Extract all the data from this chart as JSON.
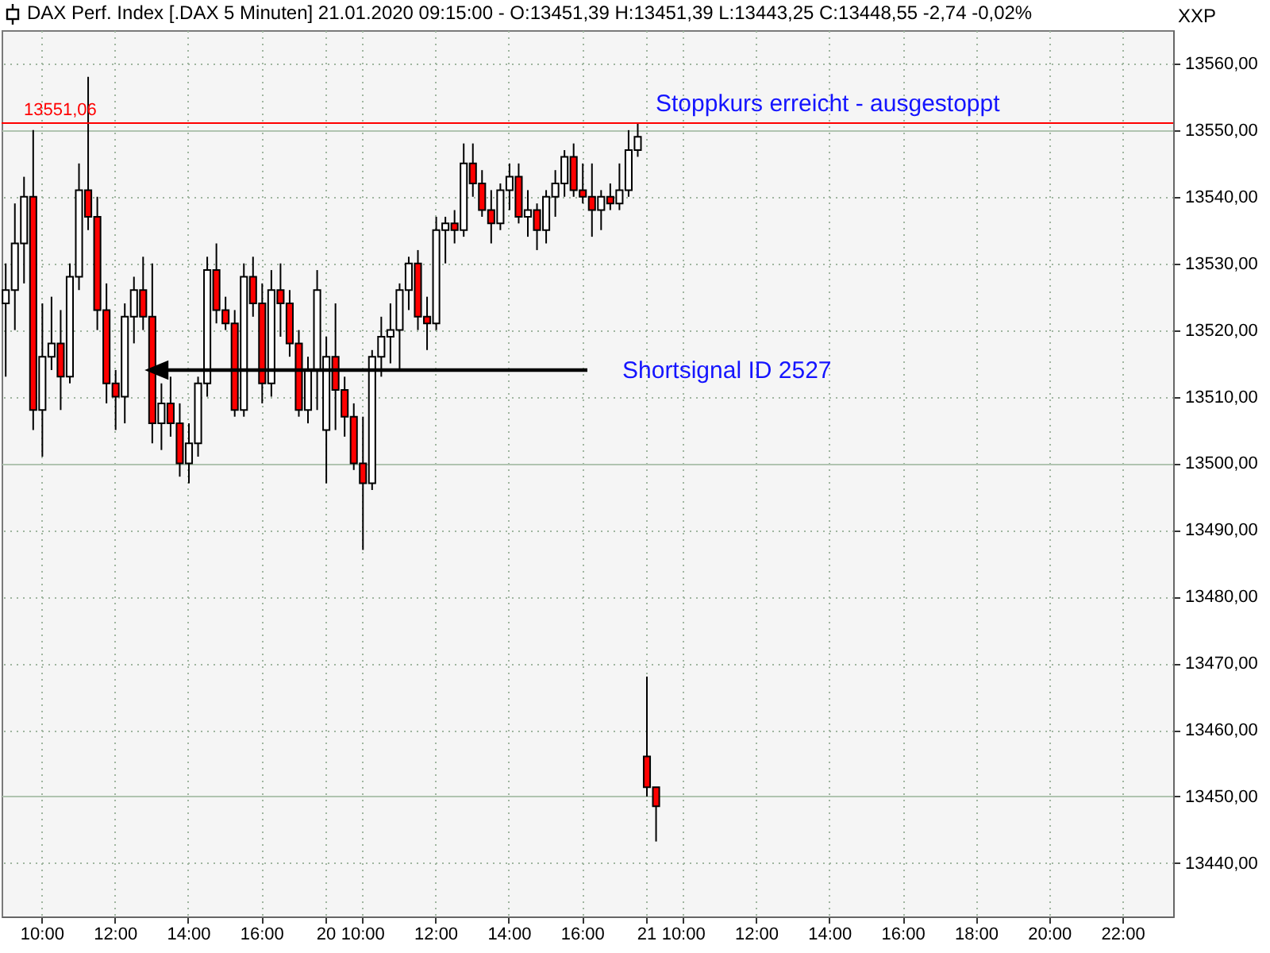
{
  "chart_data": {
    "type": "candlestick",
    "title": "DAX Perf. Index [.DAX  5 Minuten] 21.01.2020 09:15:00 - O:13451,39 H:13451,39 L:13443,25 C:13448,55 -2,74 -0,02%",
    "categories": [
      null,
      null,
      null,
      null,
      "10:00",
      null,
      null,
      null,
      null,
      null,
      null,
      null,
      "12:00",
      null,
      null,
      null,
      null,
      null,
      null,
      null,
      "14:00",
      null,
      null,
      null,
      null,
      null,
      null,
      null,
      "16:00",
      null,
      null,
      null,
      null,
      null,
      null,
      "20",
      null,
      null,
      null,
      "10:00",
      null,
      null,
      null,
      null,
      null,
      null,
      null,
      "12:00",
      null,
      null,
      null,
      null,
      null,
      null,
      null,
      "14:00",
      null,
      null,
      null,
      null,
      null,
      null,
      null,
      "16:00",
      null,
      null,
      null,
      null,
      null,
      null,
      "21",
      null,
      null,
      null,
      "10:00",
      null,
      null,
      null,
      null,
      null,
      null,
      null,
      "12:00",
      null,
      null,
      null,
      null,
      null,
      null,
      null,
      "14:00",
      null,
      null,
      null,
      null,
      null,
      null,
      null,
      "16:00",
      null,
      null,
      null,
      null,
      null,
      null,
      null,
      "18:00",
      null,
      null,
      null,
      null,
      null,
      null,
      null,
      "20:00",
      null,
      null,
      null,
      null,
      null,
      null,
      null,
      "22:00",
      null,
      null,
      null,
      null,
      null
    ],
    "ohlc": [
      [
        13524,
        13530,
        13513,
        13526
      ],
      [
        13526,
        13539,
        13520,
        13533
      ],
      [
        13533,
        13543,
        13527,
        13540
      ],
      [
        13540,
        13550,
        13505,
        13508
      ],
      [
        13508,
        13524,
        13501,
        13516
      ],
      [
        13516,
        13525,
        13514,
        13518
      ],
      [
        13518,
        13523,
        13508,
        13513
      ],
      [
        13513,
        13530,
        13512,
        13528
      ],
      [
        13528,
        13545,
        13526,
        13541
      ],
      [
        13541,
        13558,
        13535,
        13537
      ],
      [
        13537,
        13540,
        13520,
        13523
      ],
      [
        13523,
        13527,
        13509,
        13512
      ],
      [
        13512,
        13514,
        13505,
        13510
      ],
      [
        13510,
        13524,
        13506,
        13522
      ],
      [
        13522,
        13528,
        13518,
        13526
      ],
      [
        13526,
        13531,
        13520,
        13522
      ],
      [
        13522,
        13530,
        13503,
        13506
      ],
      [
        13506,
        13512,
        13502,
        13509
      ],
      [
        13509,
        13513,
        13504,
        13506
      ],
      [
        13506,
        13509,
        13498,
        13500
      ],
      [
        13500,
        13506,
        13497,
        13503
      ],
      [
        13503,
        13513,
        13501,
        13512
      ],
      [
        13512,
        13531,
        13510,
        13529
      ],
      [
        13529,
        13533,
        13521,
        13523
      ],
      [
        13523,
        13525,
        13520,
        13521
      ],
      [
        13521,
        13523,
        13507,
        13508
      ],
      [
        13508,
        13530,
        13507,
        13528
      ],
      [
        13528,
        13531,
        13522,
        13524
      ],
      [
        13524,
        13527,
        13509,
        13512
      ],
      [
        13512,
        13529,
        13510,
        13526
      ],
      [
        13526,
        13530,
        13519,
        13524
      ],
      [
        13524,
        13526,
        13516,
        13518
      ],
      [
        13518,
        13520,
        13507,
        13508
      ],
      [
        13508,
        13516,
        13506,
        13514
      ],
      [
        13514,
        13529,
        13508,
        13526
      ],
      [
        13505,
        13519,
        13497,
        13516
      ],
      [
        13516,
        13524,
        13505,
        13511
      ],
      [
        13511,
        13513,
        13504,
        13507
      ],
      [
        13507,
        13509,
        13499,
        13500
      ],
      [
        13500,
        13507,
        13487,
        13497
      ],
      [
        13497,
        13517,
        13496,
        13516
      ],
      [
        13516,
        13522,
        13513,
        13519
      ],
      [
        13519,
        13524,
        13515,
        13520
      ],
      [
        13520,
        13527,
        13514,
        13526
      ],
      [
        13526,
        13531,
        13523,
        13530
      ],
      [
        13530,
        13532,
        13520,
        13522
      ],
      [
        13522,
        13525,
        13517,
        13521
      ],
      [
        13521,
        13537,
        13520,
        13535
      ],
      [
        13535,
        13537,
        13530,
        13536
      ],
      [
        13536,
        13538,
        13533,
        13535
      ],
      [
        13535,
        13548,
        13534,
        13545
      ],
      [
        13545,
        13548,
        13540,
        13542
      ],
      [
        13542,
        13544,
        13537,
        13538
      ],
      [
        13538,
        13541,
        13533,
        13536
      ],
      [
        13536,
        13542,
        13535,
        13541
      ],
      [
        13541,
        13545,
        13538,
        13543
      ],
      [
        13543,
        13545,
        13536,
        13537
      ],
      [
        13537,
        13541,
        13534,
        13538
      ],
      [
        13538,
        13539,
        13532,
        13535
      ],
      [
        13535,
        13541,
        13533,
        13540
      ],
      [
        13540,
        13544,
        13537,
        13542
      ],
      [
        13542,
        13547,
        13540,
        13546
      ],
      [
        13546,
        13548,
        13540,
        13541
      ],
      [
        13541,
        13545,
        13539,
        13540
      ],
      [
        13540,
        13545,
        13534,
        13538
      ],
      [
        13538,
        13541,
        13535,
        13540
      ],
      [
        13540,
        13542,
        13538,
        13539
      ],
      [
        13539,
        13545,
        13538,
        13541
      ],
      [
        13541,
        13550,
        13540,
        13547
      ],
      [
        13547,
        13551,
        13546,
        13549
      ],
      [
        13456,
        13468,
        13450,
        13451.39
      ],
      [
        13451.39,
        13451.39,
        13443.25,
        13448.55
      ],
      null,
      null,
      null,
      null,
      null,
      null,
      null,
      null,
      null,
      null,
      null,
      null,
      null,
      null,
      null,
      null,
      null,
      null,
      null,
      null,
      null,
      null,
      null,
      null,
      null,
      null,
      null,
      null,
      null,
      null,
      null,
      null,
      null,
      null,
      null,
      null,
      null,
      null,
      null,
      null,
      null,
      null,
      null,
      null,
      null,
      null,
      null,
      null,
      null,
      null,
      null,
      null,
      null,
      null,
      null,
      null
    ],
    "colors": [
      "#ffffff",
      "#ffffff",
      "#ffffff",
      "#ff0000",
      "#ffffff",
      "#ffffff",
      "#ff0000",
      "#ffffff",
      "#ffffff",
      "#ff0000",
      "#ff0000",
      "#ff0000",
      "#ff0000",
      "#ffffff",
      "#ffffff",
      "#ff0000",
      "#ff0000",
      "#ffffff",
      "#ff0000",
      "#ff0000",
      "#ffffff",
      "#ffffff",
      "#ffffff",
      "#ff0000",
      "#ff0000",
      "#ff0000",
      "#ffffff",
      "#ff0000",
      "#ff0000",
      "#ffffff",
      "#ff0000",
      "#ff0000",
      "#ff0000",
      "#ffffff",
      "#ffffff",
      "#ffffff",
      "#ff0000",
      "#ff0000",
      "#ff0000",
      "#ff0000",
      "#ffffff",
      "#ffffff",
      "#ffffff",
      "#ffffff",
      "#ffffff",
      "#ff0000",
      "#ff0000",
      "#ffffff",
      "#ffffff",
      "#ff0000",
      "#ffffff",
      "#ff0000",
      "#ff0000",
      "#ff0000",
      "#ffffff",
      "#ffffff",
      "#ff0000",
      "#ffffff",
      "#ff0000",
      "#ffffff",
      "#ffffff",
      "#ffffff",
      "#ff0000",
      "#ff0000",
      "#ff0000",
      "#ffffff",
      "#ff0000",
      "#ffffff",
      "#ffffff",
      "#ffffff",
      "#ff0000",
      "#ff0000",
      null,
      null,
      null,
      null,
      null,
      null,
      null,
      null,
      null,
      null,
      null,
      null,
      null,
      null,
      null,
      null,
      null,
      null,
      null,
      null,
      null,
      null,
      null,
      null,
      null,
      null,
      null,
      null,
      null,
      null,
      null,
      null,
      null,
      null,
      null,
      null,
      null,
      null,
      null,
      null,
      null,
      null,
      null,
      null,
      null,
      null,
      null,
      null,
      null,
      null,
      null,
      null,
      null,
      null,
      null,
      null
    ],
    "ylim": [
      13432,
      13565
    ],
    "yticks": [
      {
        "value": 13440,
        "label": "13440,00"
      },
      {
        "value": 13450,
        "label": "13450,00"
      },
      {
        "value": 13460,
        "label": "13460,00"
      },
      {
        "value": 13470,
        "label": "13470,00"
      },
      {
        "value": 13480,
        "label": "13480,00"
      },
      {
        "value": 13490,
        "label": "13490,00"
      },
      {
        "value": 13500,
        "label": "13500,00"
      },
      {
        "value": 13510,
        "label": "13510,00"
      },
      {
        "value": 13520,
        "label": "13520,00"
      },
      {
        "value": 13530,
        "label": "13530,00"
      },
      {
        "value": 13540,
        "label": "13540,00"
      },
      {
        "value": 13550,
        "label": "13550,00"
      },
      {
        "value": 13560,
        "label": "13560,00"
      }
    ],
    "grid": true,
    "ref_lines": [
      {
        "axis": "y",
        "value": 13551.06,
        "label": "13551,06",
        "color": "#ff0000"
      }
    ],
    "annotations": [
      "Stoppkurs erreicht - ausgestoppt",
      "Shortsignal ID 2527",
      "XXP"
    ]
  }
}
